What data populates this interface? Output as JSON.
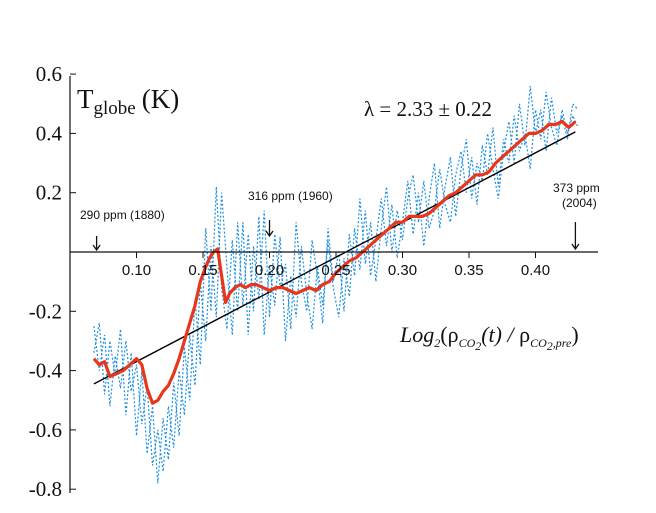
{
  "chart_data": {
    "type": "line",
    "title": "T",
    "title_subscript": "globe",
    "title_unit": "(K)",
    "annotation_lambda": "λ = 2.33 ± 0.22",
    "xlabel_parts": {
      "prefix": "Log",
      "base": "2",
      "rho": "ρ",
      "sub1": "CO",
      "sub1_2": "2",
      "mid": "(t) / ",
      "sub2": "CO",
      "sub2_2": "2",
      "sub2_tail": ",pre"
    },
    "xlim": [
      0.05,
      0.45
    ],
    "ylim": [
      -0.8,
      0.6
    ],
    "x_ticks": [
      0.1,
      0.15,
      0.2,
      0.25,
      0.3,
      0.35,
      0.4
    ],
    "x_tick_labels": [
      "0.10",
      "0.15",
      "0.20",
      "0.25",
      "0.30",
      "0.35",
      "0.40"
    ],
    "y_ticks": [
      0.6,
      0.4,
      0.2,
      -0.2,
      -0.4,
      -0.6,
      -0.8
    ],
    "y_tick_labels": [
      "0.6",
      "0.4",
      "0.2",
      "-0.2",
      "-0.4",
      "-0.6",
      "-0.8"
    ],
    "markers": [
      {
        "label": "290 ppm (1880)",
        "x": 0.07
      },
      {
        "label": "316 ppm (1960)",
        "x": 0.2
      },
      {
        "label": "373 ppm",
        "label2": "(2004)",
        "x": 0.43
      }
    ],
    "series": [
      {
        "name": "smoothed",
        "color": "#e8361a",
        "x": [
          0.068,
          0.072,
          0.076,
          0.08,
          0.085,
          0.09,
          0.095,
          0.1,
          0.104,
          0.108,
          0.112,
          0.116,
          0.12,
          0.124,
          0.128,
          0.132,
          0.136,
          0.14,
          0.144,
          0.148,
          0.152,
          0.155,
          0.158,
          0.161,
          0.164,
          0.167,
          0.17,
          0.174,
          0.178,
          0.182,
          0.186,
          0.19,
          0.195,
          0.2,
          0.205,
          0.21,
          0.215,
          0.22,
          0.225,
          0.23,
          0.235,
          0.24,
          0.245,
          0.25,
          0.255,
          0.26,
          0.265,
          0.27,
          0.275,
          0.28,
          0.285,
          0.29,
          0.295,
          0.3,
          0.305,
          0.31,
          0.315,
          0.32,
          0.325,
          0.33,
          0.335,
          0.34,
          0.345,
          0.35,
          0.355,
          0.36,
          0.365,
          0.37,
          0.375,
          0.38,
          0.385,
          0.39,
          0.395,
          0.4,
          0.405,
          0.41,
          0.415,
          0.42,
          0.425,
          0.43
        ],
        "y": [
          -0.36,
          -0.38,
          -0.37,
          -0.42,
          -0.41,
          -0.4,
          -0.38,
          -0.36,
          -0.38,
          -0.46,
          -0.51,
          -0.5,
          -0.47,
          -0.45,
          -0.41,
          -0.36,
          -0.3,
          -0.24,
          -0.18,
          -0.1,
          -0.05,
          -0.02,
          0.0,
          0.01,
          -0.08,
          -0.17,
          -0.14,
          -0.12,
          -0.11,
          -0.12,
          -0.11,
          -0.11,
          -0.12,
          -0.13,
          -0.12,
          -0.12,
          -0.13,
          -0.14,
          -0.13,
          -0.12,
          -0.13,
          -0.11,
          -0.1,
          -0.07,
          -0.05,
          -0.03,
          -0.02,
          0.0,
          0.02,
          0.04,
          0.06,
          0.08,
          0.1,
          0.1,
          0.12,
          0.12,
          0.12,
          0.13,
          0.15,
          0.17,
          0.19,
          0.2,
          0.22,
          0.24,
          0.26,
          0.26,
          0.27,
          0.3,
          0.32,
          0.34,
          0.36,
          0.38,
          0.4,
          0.4,
          0.41,
          0.43,
          0.43,
          0.44,
          0.42,
          0.44
        ]
      },
      {
        "name": "fit",
        "color": "#000000",
        "x": [
          0.068,
          0.43
        ],
        "y": [
          -0.445,
          0.405
        ]
      },
      {
        "name": "annual-a",
        "color": "#1e8fe0",
        "x": [
          0.068,
          0.072,
          0.076,
          0.08,
          0.084,
          0.088,
          0.092,
          0.096,
          0.1,
          0.104,
          0.108,
          0.112,
          0.116,
          0.12,
          0.124,
          0.128,
          0.132,
          0.136,
          0.14,
          0.144,
          0.148,
          0.152,
          0.156,
          0.16,
          0.164,
          0.168,
          0.172,
          0.176,
          0.18,
          0.184,
          0.188,
          0.192,
          0.196,
          0.2,
          0.204,
          0.208,
          0.212,
          0.216,
          0.22,
          0.224,
          0.228,
          0.232,
          0.236,
          0.24,
          0.244,
          0.248,
          0.252,
          0.256,
          0.26,
          0.264,
          0.268,
          0.272,
          0.276,
          0.28,
          0.284,
          0.288,
          0.292,
          0.296,
          0.3,
          0.304,
          0.308,
          0.312,
          0.316,
          0.32,
          0.324,
          0.328,
          0.332,
          0.336,
          0.34,
          0.344,
          0.348,
          0.352,
          0.356,
          0.36,
          0.364,
          0.368,
          0.372,
          0.376,
          0.38,
          0.384,
          0.388,
          0.392,
          0.396,
          0.4,
          0.404,
          0.408,
          0.412,
          0.416,
          0.42,
          0.424,
          0.428,
          0.432
        ],
        "y": [
          -0.25,
          -0.4,
          -0.28,
          -0.52,
          -0.35,
          -0.46,
          -0.3,
          -0.47,
          -0.38,
          -0.58,
          -0.45,
          -0.72,
          -0.6,
          -0.74,
          -0.52,
          -0.66,
          -0.4,
          -0.55,
          -0.28,
          -0.45,
          -0.1,
          -0.3,
          0.02,
          -0.22,
          0.2,
          -0.05,
          -0.28,
          0.1,
          -0.18,
          0.06,
          -0.2,
          0.12,
          -0.28,
          -0.05,
          -0.18,
          0.05,
          -0.3,
          -0.08,
          -0.22,
          0.02,
          -0.14,
          -0.26,
          -0.05,
          -0.18,
          0.04,
          -0.12,
          -0.22,
          -0.02,
          -0.15,
          0.08,
          -0.06,
          0.14,
          -0.08,
          0.04,
          0.18,
          0.02,
          0.16,
          -0.02,
          0.1,
          0.24,
          0.06,
          0.2,
          0.02,
          0.18,
          0.3,
          0.08,
          0.22,
          0.32,
          0.12,
          0.28,
          0.38,
          0.18,
          0.3,
          0.24,
          0.4,
          0.28,
          0.18,
          0.34,
          0.44,
          0.3,
          0.5,
          0.36,
          0.56,
          0.4,
          0.48,
          0.34,
          0.52,
          0.4,
          0.46,
          0.38,
          0.5,
          0.48
        ]
      },
      {
        "name": "annual-b",
        "color": "#1e8fe0",
        "x": [
          0.068,
          0.072,
          0.076,
          0.08,
          0.084,
          0.088,
          0.092,
          0.096,
          0.1,
          0.104,
          0.108,
          0.112,
          0.116,
          0.12,
          0.124,
          0.128,
          0.132,
          0.136,
          0.14,
          0.144,
          0.148,
          0.152,
          0.156,
          0.16,
          0.164,
          0.168,
          0.172,
          0.176,
          0.18,
          0.184,
          0.188,
          0.192,
          0.196,
          0.2,
          0.204,
          0.208,
          0.212,
          0.216,
          0.22,
          0.224,
          0.228,
          0.232,
          0.236,
          0.24,
          0.244,
          0.248,
          0.252,
          0.256,
          0.26,
          0.264,
          0.268,
          0.272,
          0.276,
          0.28,
          0.284,
          0.288,
          0.292,
          0.296,
          0.3,
          0.304,
          0.308,
          0.312,
          0.316,
          0.32,
          0.324,
          0.328,
          0.332,
          0.336,
          0.34,
          0.344,
          0.348,
          0.352,
          0.356,
          0.36,
          0.364,
          0.368,
          0.372,
          0.376,
          0.38,
          0.384,
          0.388,
          0.392,
          0.396,
          0.4,
          0.404,
          0.408,
          0.412,
          0.416,
          0.42,
          0.424,
          0.428,
          0.432
        ],
        "y": [
          -0.34,
          -0.24,
          -0.48,
          -0.3,
          -0.42,
          -0.26,
          -0.55,
          -0.34,
          -0.62,
          -0.4,
          -0.68,
          -0.52,
          -0.78,
          -0.56,
          -0.7,
          -0.44,
          -0.62,
          -0.32,
          -0.5,
          -0.16,
          -0.38,
          0.08,
          -0.2,
          0.22,
          -0.12,
          -0.26,
          0.04,
          -0.2,
          0.1,
          -0.28,
          0.02,
          -0.16,
          0.14,
          -0.22,
          0.06,
          -0.12,
          -0.04,
          -0.26,
          0.1,
          -0.1,
          -0.2,
          0.04,
          -0.08,
          -0.24,
          0.08,
          -0.1,
          0.0,
          -0.2,
          0.06,
          -0.08,
          0.18,
          -0.04,
          0.1,
          -0.1,
          0.08,
          0.22,
          0.0,
          0.14,
          0.04,
          0.18,
          0.26,
          0.1,
          0.24,
          0.08,
          0.14,
          0.28,
          0.16,
          0.1,
          0.26,
          0.34,
          0.2,
          0.32,
          0.16,
          0.36,
          0.26,
          0.42,
          0.22,
          0.38,
          0.3,
          0.46,
          0.34,
          0.4,
          0.28,
          0.48,
          0.38,
          0.54,
          0.42,
          0.36,
          0.48,
          0.4,
          0.46,
          0.42
        ]
      }
    ]
  }
}
